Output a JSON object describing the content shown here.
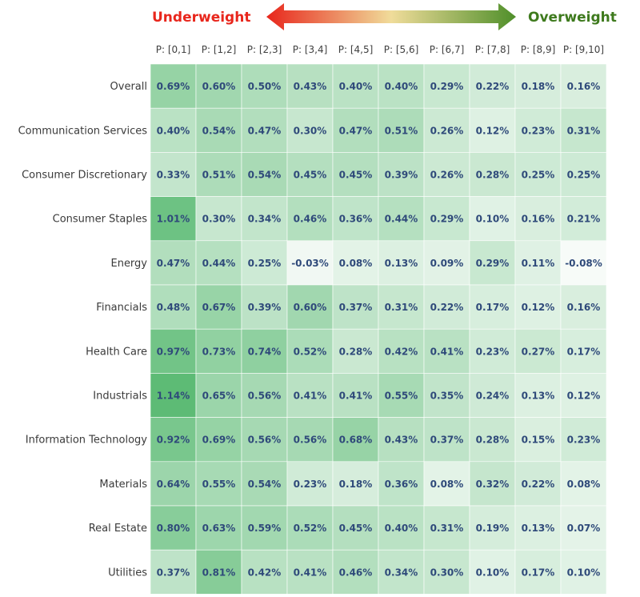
{
  "header": {
    "underweight_label": "Underweight",
    "overweight_label": "Overweight",
    "underweight_color": "#e8261c",
    "overweight_color": "#3e7a1d",
    "arrow_gradient": [
      "#e8261c",
      "#f0dc9a",
      "#4f8f2a"
    ]
  },
  "colors": {
    "cell_low": "#f7fbf8",
    "cell_high": "#5dbb75",
    "cell_text": "#2f4a7a",
    "grid_line": "#ffffff"
  },
  "chart_data": {
    "type": "heatmap",
    "columns": [
      "P: [0,1]",
      "P: [1,2]",
      "P: [2,3]",
      "P: [3,4]",
      "P: [4,5]",
      "P: [5,6]",
      "P: [6,7]",
      "P: [7,8]",
      "P: [8,9]",
      "P: [9,10]"
    ],
    "rows": [
      "Overall",
      "Communication Services",
      "Consumer Discretionary",
      "Consumer Staples",
      "Energy",
      "Financials",
      "Health Care",
      "Industrials",
      "Information Technology",
      "Materials",
      "Real Estate",
      "Utilities"
    ],
    "values": [
      [
        0.69,
        0.6,
        0.5,
        0.43,
        0.4,
        0.4,
        0.29,
        0.22,
        0.18,
        0.16
      ],
      [
        0.4,
        0.54,
        0.47,
        0.3,
        0.47,
        0.51,
        0.26,
        0.12,
        0.23,
        0.31
      ],
      [
        0.33,
        0.51,
        0.54,
        0.45,
        0.45,
        0.39,
        0.26,
        0.28,
        0.25,
        0.25
      ],
      [
        1.01,
        0.3,
        0.34,
        0.46,
        0.36,
        0.44,
        0.29,
        0.1,
        0.16,
        0.21
      ],
      [
        0.47,
        0.44,
        0.25,
        -0.03,
        0.08,
        0.13,
        0.09,
        0.29,
        0.11,
        -0.08
      ],
      [
        0.48,
        0.67,
        0.39,
        0.6,
        0.37,
        0.31,
        0.22,
        0.17,
        0.12,
        0.16
      ],
      [
        0.97,
        0.73,
        0.74,
        0.52,
        0.28,
        0.42,
        0.41,
        0.23,
        0.27,
        0.17
      ],
      [
        1.14,
        0.65,
        0.56,
        0.41,
        0.41,
        0.55,
        0.35,
        0.24,
        0.13,
        0.12
      ],
      [
        0.92,
        0.69,
        0.56,
        0.56,
        0.68,
        0.43,
        0.37,
        0.28,
        0.15,
        0.23
      ],
      [
        0.64,
        0.55,
        0.54,
        0.23,
        0.18,
        0.36,
        0.08,
        0.32,
        0.22,
        0.08
      ],
      [
        0.8,
        0.63,
        0.59,
        0.52,
        0.45,
        0.4,
        0.31,
        0.19,
        0.13,
        0.07
      ],
      [
        0.37,
        0.81,
        0.42,
        0.41,
        0.46,
        0.34,
        0.3,
        0.1,
        0.17,
        0.1
      ]
    ],
    "value_format": "percent_2dp",
    "color_scale": {
      "min": -0.08,
      "max": 1.14
    }
  }
}
